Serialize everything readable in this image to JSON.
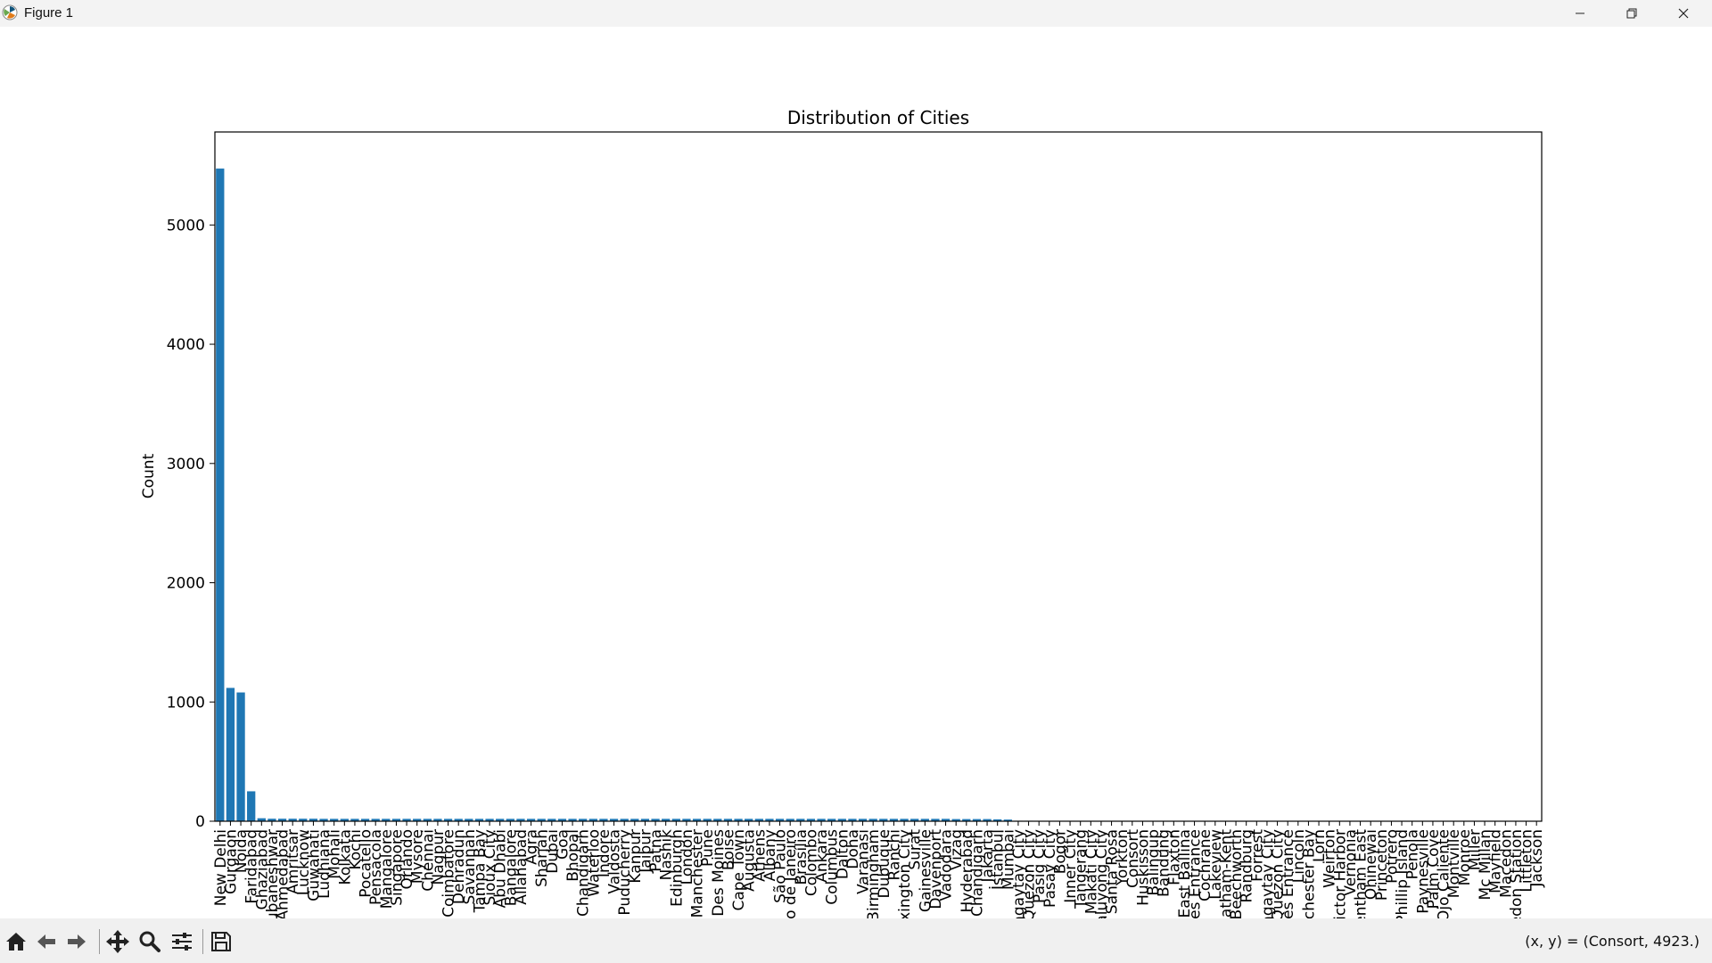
{
  "window": {
    "title": "Figure 1",
    "minimize_icon": "minimize-icon",
    "maximize_icon": "restore-icon",
    "close_icon": "close-icon"
  },
  "toolbar": {
    "buttons": [
      "home-icon",
      "back-icon",
      "forward-icon",
      "pan-icon",
      "zoom-icon",
      "configure-subplots-icon",
      "save-icon"
    ],
    "coords": "(x, y) = (Consort, 4923.)"
  },
  "chart_data": {
    "type": "bar",
    "title": "Distribution of Cities",
    "xlabel": "",
    "ylabel": "Count",
    "ylim": [
      0,
      5780
    ],
    "yticks": [
      0,
      1000,
      2000,
      3000,
      4000,
      5000
    ],
    "bar_color": "#1f77b4",
    "grid": false,
    "categories": [
      "New Delhi",
      "Gurgaon",
      "Noida",
      "Faridabad",
      "Ghaziabad",
      "Bhubaneshwar",
      "Ahmedabad",
      "Amritsar",
      "Lucknow",
      "Guwahati",
      "Ludhiana",
      "Mohali",
      "Kolkata",
      "Kochi",
      "Pocatello",
      "Pensacola",
      "Mangalore",
      "Singapore",
      "Orlando",
      "Mysore",
      "Chennai",
      "Nagpur",
      "Coimbatore",
      "Dehradun",
      "Savannah",
      "Tampa Bay",
      "Sioux City",
      "Abu Dhabi",
      "Bangalore",
      "Allahabad",
      "Agra",
      "Sharjah",
      "Dubai",
      "Goa",
      "Bhopal",
      "Chandigarh",
      "Waterloo",
      "Indore",
      "Valdosta",
      "Puducherry",
      "Kanpur",
      "Jaipur",
      "Patna",
      "Nashik",
      "Edinburgh",
      "London",
      "Manchester",
      "Pune",
      "Des Moines",
      "Boise",
      "Cape Town",
      "Augusta",
      "Athens",
      "Albany",
      "São Paulo",
      "Rio de Janeiro",
      "Brasília",
      "Colombo",
      "Ankara",
      "Columbus",
      "Dalton",
      "Doha",
      "Varanasi",
      "Birmingham",
      "Dubuque",
      "Ranchi",
      "Lexington City",
      "Surat",
      "Gainesville",
      "Davenport",
      "Vadodara",
      "Vizag",
      "Hyderabad",
      "Chandigarh",
      "Jakarta",
      "İstanbul",
      "Mumbai",
      "Tagaytay City",
      "Quezon City",
      "Pasig City",
      "Pasay City",
      "Bogor",
      "Inner City",
      "Tangerang",
      "Makati City",
      "Mandaluyong City",
      "Santa Rosa",
      "Yorkton",
      "Consort",
      "Huskisson",
      "Balingup",
      "Bandung",
      "Flaxton",
      "East Ballina",
      "Lakes Entrance",
      "Cochrane",
      "Lakeview",
      "Chatham-Kent",
      "Beechworth",
      "Randburg",
      "Forrest",
      "Tagaytay City",
      "Quezon City",
      "Lakes Entrance",
      "Lincoln",
      "Winchester Bay",
      "Lorn",
      "Weirton",
      "Victor Harbor",
      "Vernonia",
      "Wentham East",
      "Ohinewai",
      "Princeton",
      "Potrero",
      "Phillip Island",
      "Penola",
      "Paynesville",
      "Palm Cove",
      "Ojo Caliente",
      "Montville",
      "Monroe",
      "Miller",
      "Mc Millan",
      "Mayfield",
      "Macedon",
      "Macedon Station",
      "Littleton",
      "Jackson"
    ],
    "visible_tick_labels": [
      "New Delhi",
      "Gurgaon",
      "Noida",
      "Faridabad",
      "Ghaziabad",
      "Bhubaneshwar",
      "Ahmedabad",
      "Amritsar",
      "Lucknow",
      "Guwahati",
      "Ludhiana",
      "Mohali",
      "Kolkata",
      "Kochi",
      "Pocatello",
      "Pensacola",
      "Mangalore",
      "Singapore",
      "Orlando",
      "Mysore",
      "Chennai",
      "Nagpur",
      "Coimbatore",
      "Dehradun",
      "Savannah",
      "Tampa Bay",
      "Sioux City",
      "Abu Dhabi",
      "Bangalore",
      "Allahabad",
      "Agra",
      "Sharjah",
      "Dubai",
      "Goa",
      "Bhopal",
      "Chandigarh",
      "Waterloo",
      "Indore",
      "Valdosta",
      "Puducherry",
      "Kanpur",
      "Jaipur",
      "Patna",
      "Nashik",
      "Edinburgh",
      "London",
      "Manchester",
      "Pune",
      "Des Moines",
      "Boise",
      "Cape Town",
      "Augusta",
      "Athens",
      "Albany",
      "São Paulo",
      "Rio de Janeiro",
      "Brasília",
      "Colombo",
      "Ankara",
      "Columbus",
      "Dalton",
      "Doha",
      "Varanasi",
      "Birmingham",
      "Dubuque",
      "Ranchi",
      "Lexington City",
      "Surat",
      "Gainesville",
      "Davenport",
      "Vadodara",
      "Vizag",
      "Hyderabad",
      "Chandigarh",
      "Jakarta",
      "İstanbul",
      "Mumbai",
      "Tagaytay City",
      "Quezon City",
      "Pasig City",
      "Pasay City",
      "Bogor",
      "Inner City",
      "Tangerang",
      "Makati City",
      "Mandaluyong City",
      "Santa Rosa",
      "Yorkton",
      "Consort",
      "Huskisson",
      "Balingup",
      "Bandung",
      "Flaxton",
      "East Ballina",
      "Lakes Entrance",
      "Cochrane",
      "Lakeview",
      "Chatham-Kent",
      "Beechworth",
      "Randburg",
      "Forrest",
      "Tagaytay City",
      "Quezon City",
      "Lakes Entrance",
      "Lincoln",
      "Winchester Bay",
      "Lorn",
      "Weirton",
      "Victor Harbor",
      "Vernonia",
      "Wentham East",
      "Ohinewai",
      "Princeton",
      "Potrero",
      "Phillip Island",
      "Penola",
      "Paynesville",
      "Palm Cove",
      "Ojo Caliente",
      "Montville",
      "Monroe",
      "Miller",
      "Mc Millan",
      "Mayfield",
      "Macedon",
      "Macedon Station",
      "Littleton",
      "Jackson"
    ],
    "values": [
      5473,
      1118,
      1080,
      251,
      25,
      21,
      21,
      21,
      21,
      21,
      20,
      20,
      20,
      20,
      20,
      20,
      20,
      20,
      20,
      20,
      20,
      20,
      20,
      20,
      20,
      20,
      20,
      20,
      20,
      20,
      20,
      20,
      20,
      20,
      20,
      20,
      20,
      20,
      20,
      20,
      20,
      20,
      20,
      20,
      20,
      20,
      20,
      20,
      20,
      20,
      20,
      20,
      20,
      20,
      20,
      20,
      20,
      20,
      20,
      20,
      20,
      20,
      20,
      20,
      20,
      20,
      20,
      20,
      20,
      20,
      20,
      18,
      18,
      18,
      18,
      16,
      14,
      4,
      4,
      3,
      3,
      2,
      2,
      2,
      2,
      2,
      2,
      2,
      1,
      1,
      1,
      1,
      1,
      1,
      1,
      1,
      1,
      1,
      1,
      1,
      1,
      1,
      1,
      1,
      1,
      1,
      1,
      1,
      1,
      1,
      1,
      1,
      1,
      1,
      1,
      1,
      1,
      1,
      1,
      1,
      1,
      1,
      1,
      1,
      1,
      1,
      1,
      1
    ]
  }
}
